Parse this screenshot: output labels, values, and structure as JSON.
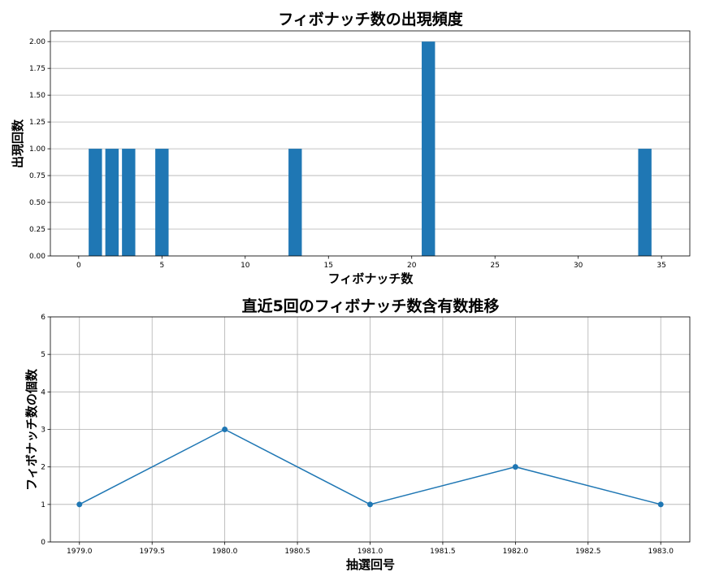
{
  "chart_data": [
    {
      "type": "bar",
      "title": "フィボナッチ数の出現頻度",
      "xlabel": "フィボナッチ数",
      "ylabel": "出現回数",
      "x": [
        1,
        2,
        3,
        5,
        13,
        21,
        34
      ],
      "values": [
        1,
        1,
        1,
        1,
        1,
        2,
        1
      ],
      "xlim": [
        -1.7,
        36.7
      ],
      "ylim": [
        0,
        2.1
      ],
      "xticks": [
        0,
        5,
        10,
        15,
        20,
        25,
        30,
        35
      ],
      "xtick_labels": [
        "0",
        "5",
        "10",
        "15",
        "20",
        "25",
        "30",
        "35"
      ],
      "yticks": [
        0,
        0.25,
        0.5,
        0.75,
        1.0,
        1.25,
        1.5,
        1.75,
        2.0
      ],
      "ytick_labels": [
        "0.00",
        "0.25",
        "0.50",
        "0.75",
        "1.00",
        "1.25",
        "1.50",
        "1.75",
        "2.00"
      ],
      "color": "#1f77b4",
      "grid": "y"
    },
    {
      "type": "line",
      "title": "直近5回のフィボナッチ数含有数推移",
      "xlabel": "抽選回号",
      "ylabel": "フィボナッチ数の個数",
      "x": [
        1979,
        1980,
        1981,
        1982,
        1983
      ],
      "values": [
        1,
        3,
        1,
        2,
        1
      ],
      "xlim": [
        1978.8,
        1983.2
      ],
      "ylim": [
        0,
        6
      ],
      "xticks": [
        1979.0,
        1979.5,
        1980.0,
        1980.5,
        1981.0,
        1981.5,
        1982.0,
        1982.5,
        1983.0
      ],
      "xtick_labels": [
        "1979.0",
        "1979.5",
        "1980.0",
        "1980.5",
        "1981.0",
        "1981.5",
        "1982.0",
        "1982.5",
        "1983.0"
      ],
      "yticks": [
        0,
        1,
        2,
        3,
        4,
        5,
        6
      ],
      "ytick_labels": [
        "0",
        "1",
        "2",
        "3",
        "4",
        "5",
        "6"
      ],
      "color": "#1f77b4",
      "grid": "both",
      "markers": true
    }
  ]
}
